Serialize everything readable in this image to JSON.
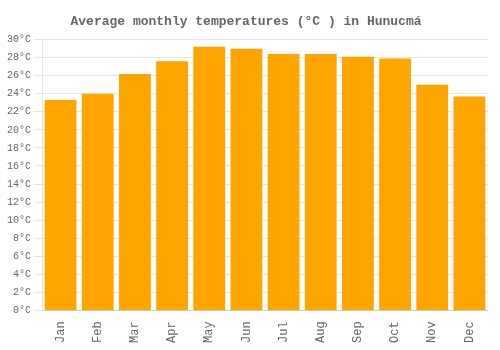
{
  "chart_data": {
    "type": "bar",
    "title": "Average monthly temperatures (°C ) in Hunucmá",
    "categories": [
      "Jan",
      "Feb",
      "Mar",
      "Apr",
      "May",
      "Jun",
      "Jul",
      "Aug",
      "Sep",
      "Oct",
      "Nov",
      "Dec"
    ],
    "values": [
      23.3,
      24.0,
      26.2,
      27.6,
      29.2,
      29.0,
      28.4,
      28.4,
      28.1,
      27.9,
      25.0,
      23.7
    ],
    "color": "#FFA500",
    "ylim": [
      0,
      30
    ],
    "yticks": [
      {
        "value": 0,
        "label": "0°C"
      },
      {
        "value": 2,
        "label": "2°C"
      },
      {
        "value": 4,
        "label": "4°C"
      },
      {
        "value": 6,
        "label": "6°C"
      },
      {
        "value": 8,
        "label": "8°C"
      },
      {
        "value": 10,
        "label": "10°C"
      },
      {
        "value": 12,
        "label": "12°C"
      },
      {
        "value": 14,
        "label": "14°C"
      },
      {
        "value": 16,
        "label": "16°C"
      },
      {
        "value": 18,
        "label": "18°C"
      },
      {
        "value": 20,
        "label": "20°C"
      },
      {
        "value": 22,
        "label": "22°C"
      },
      {
        "value": 24,
        "label": "24°C"
      },
      {
        "value": 26,
        "label": "26°C"
      },
      {
        "value": 28,
        "label": "28°C"
      },
      {
        "value": 30,
        "label": "30°C"
      }
    ],
    "grid": true
  }
}
